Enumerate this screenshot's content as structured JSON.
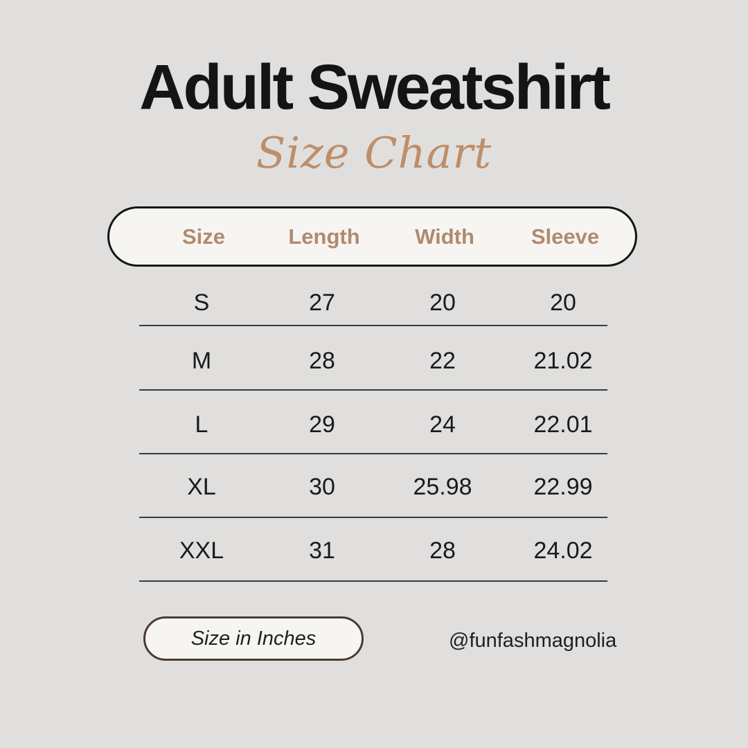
{
  "page": {
    "background_color": "#e0dfdd"
  },
  "header": {
    "title": "Adult Sweatshirt",
    "subtitle": "Size Chart"
  },
  "table": {
    "columns": [
      "Size",
      "Length",
      "Width",
      "Sleeve"
    ],
    "rows": [
      [
        "S",
        "27",
        "20",
        "20"
      ],
      [
        "M",
        "28",
        "22",
        "21.02"
      ],
      [
        "L",
        "29",
        "24",
        "22.01"
      ],
      [
        "XL",
        "30",
        "25.98",
        "22.99"
      ],
      [
        "XXL",
        "31",
        "28",
        "24.02"
      ]
    ]
  },
  "footer": {
    "unit_note": "Size in Inches",
    "social_handle": "@funfashmagnolia"
  },
  "colors": {
    "accent_tan_header": "#b18a6e",
    "accent_tan_script": "#bd8e6a",
    "text": "#1a1a1a",
    "header_pill_border": "#141414",
    "footer_pill_border": "#4b3a31",
    "pill_fill": "#f6f5f2",
    "separator": "#3a3a3a"
  },
  "chart_data": {
    "type": "table",
    "title": "Adult Sweatshirt Size Chart",
    "units": "inches",
    "columns": [
      "Size",
      "Length",
      "Width",
      "Sleeve"
    ],
    "rows": [
      [
        "S",
        "27",
        "20",
        "20"
      ],
      [
        "M",
        "28",
        "22",
        "21.02"
      ],
      [
        "L",
        "29",
        "24",
        "22.01"
      ],
      [
        "XL",
        "30",
        "25.98",
        "22.99"
      ],
      [
        "XXL",
        "31",
        "28",
        "24.02"
      ]
    ]
  }
}
